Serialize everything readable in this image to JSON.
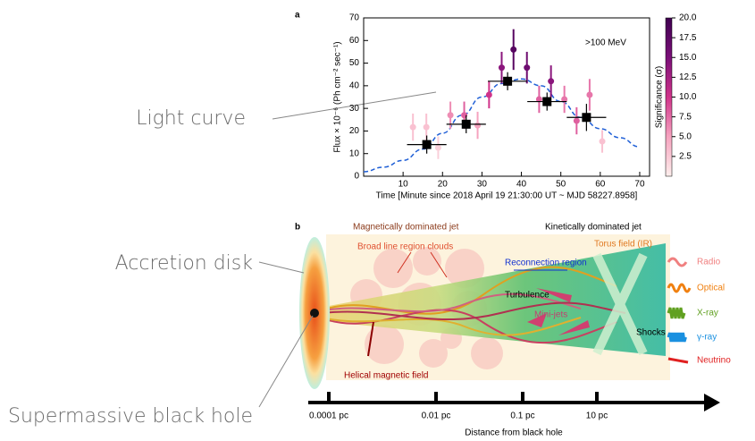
{
  "chart_data": {
    "type": "scatter",
    "panel_label": "a",
    "annotation": ">100 MeV",
    "x_label": "Time [Minute since 2018 April 19 21:30:00 UT ~ MJD 58227.8958]",
    "y_label": "Flux × 10⁻⁶ (Ph cm⁻² sec⁻¹)",
    "xlim": [
      0,
      72.5
    ],
    "xticks": [
      10,
      20,
      30,
      40,
      50,
      60,
      70
    ],
    "ylim": [
      0,
      70
    ],
    "yticks": [
      0,
      10,
      20,
      30,
      40,
      50,
      60,
      70
    ],
    "colorbar": {
      "label": "Significance (σ)",
      "lim": [
        0,
        20
      ],
      "ticks": [
        {
          "value": 2.5,
          "label": "2.5"
        },
        {
          "value": 5,
          "label": "5.0"
        },
        {
          "value": 7.5,
          "label": "7.5"
        },
        {
          "value": 10,
          "label": "10.0"
        },
        {
          "value": 12.5,
          "label": "12.5"
        },
        {
          "value": 15,
          "label": "15.0"
        },
        {
          "value": 17.5,
          "label": "17.5"
        },
        {
          "value": 20,
          "label": "20.0"
        }
      ],
      "colormap": [
        "#fdeeec",
        "#f6a3bf",
        "#d0338a",
        "#7a0f78",
        "#3f0050"
      ]
    },
    "points": {
      "x": [
        12.5,
        15.9,
        18.9,
        22,
        25.5,
        28.9,
        31.8,
        35,
        38,
        41.4,
        44.5,
        47.5,
        50.9,
        54,
        57.3,
        60.5
      ],
      "values": [
        21.7,
        21.7,
        12.6,
        27,
        27,
        22.5,
        36,
        48,
        56,
        48,
        34,
        42,
        34,
        24.5,
        36,
        15.4
      ],
      "errors": [
        6,
        6,
        5,
        6,
        6,
        6,
        6,
        7,
        9,
        7,
        6,
        7,
        6,
        6,
        7,
        5
      ],
      "significance": [
        3,
        3,
        2,
        6,
        8,
        5,
        10,
        14,
        18,
        16,
        8,
        14,
        7,
        8,
        7,
        3
      ]
    },
    "binned": {
      "x": [
        16,
        26,
        36.5,
        46.5,
        56.5
      ],
      "values": [
        14,
        23,
        42,
        33,
        26
      ],
      "x_errors": [
        5,
        5,
        5,
        5,
        5
      ],
      "errors": [
        4,
        4,
        4,
        4,
        6
      ],
      "color": "#000000"
    },
    "fit": {
      "x": [
        0,
        5,
        10,
        15,
        20,
        25,
        30,
        35,
        40,
        45,
        50,
        55,
        60,
        65,
        70
      ],
      "values": [
        2,
        4,
        7,
        12,
        19,
        27,
        35,
        41,
        43,
        40,
        33,
        26,
        21,
        17,
        13
      ],
      "color": "#1f5fd6"
    }
  },
  "annotations": [
    "Light curve",
    "Accretion disk",
    "Supermassive black hole"
  ],
  "diagram": {
    "panel_label": "b",
    "title_left": "Magnetically dominated jet",
    "title_right": "Kinetically dominated jet",
    "labels": [
      "Broad line region clouds",
      "Reconnection region",
      "Torus field (IR)",
      "Turbulence",
      "Mini-jets",
      "Shocks",
      "Helical magnetic field"
    ],
    "distance_axis": {
      "label": "Distance from black hole",
      "ticks": [
        "0.0001 pc",
        "0.01 pc",
        "0.1 pc",
        "10 pc"
      ]
    },
    "emission": [
      "Radio",
      "Optical",
      "X-ray",
      "γ-ray",
      "Neutrino"
    ]
  }
}
